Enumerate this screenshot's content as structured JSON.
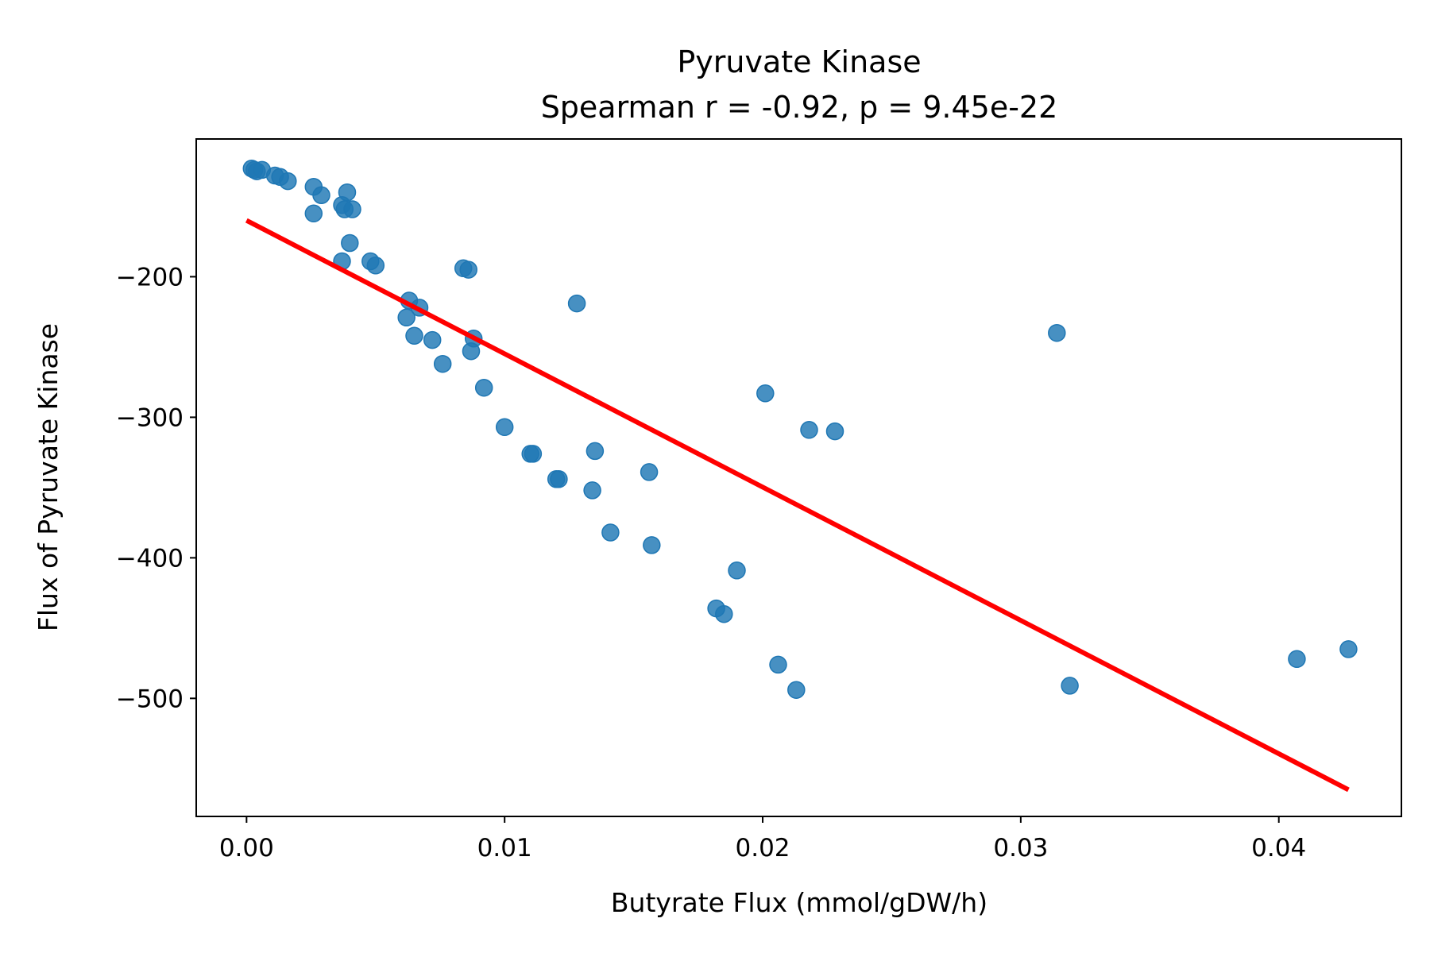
{
  "chart_data": {
    "type": "scatter",
    "title": "Pyruvate Kinase",
    "subtitle": "Spearman r = -0.92, p = 9.45e-22",
    "xlabel": "Butyrate Flux (mmol/gDW/h)",
    "ylabel": "Flux of Pyruvate Kinase",
    "xlim": [
      -0.00195,
      0.04475
    ],
    "ylim": [
      -584,
      -102
    ],
    "x_ticks": [
      0.0,
      0.01,
      0.02,
      0.03,
      0.04
    ],
    "x_tick_labels": [
      "0.00",
      "0.01",
      "0.02",
      "0.03",
      "0.04"
    ],
    "y_ticks": [
      -200,
      -300,
      -400,
      -500
    ],
    "y_tick_labels": [
      "−200",
      "−300",
      "−400",
      "−500"
    ],
    "grid": false,
    "colors": {
      "points": "#1f77b4",
      "fit_line": "#ff0000"
    },
    "fit_line": {
      "x": [
        0.0,
        0.0427
      ],
      "y": [
        -160,
        -565
      ]
    },
    "points": [
      {
        "x": 0.0002,
        "y": -123
      },
      {
        "x": 0.0003,
        "y": -124
      },
      {
        "x": 0.0004,
        "y": -125
      },
      {
        "x": 0.0006,
        "y": -124
      },
      {
        "x": 0.0011,
        "y": -128
      },
      {
        "x": 0.0013,
        "y": -129
      },
      {
        "x": 0.0016,
        "y": -132
      },
      {
        "x": 0.0026,
        "y": -136
      },
      {
        "x": 0.0029,
        "y": -142
      },
      {
        "x": 0.0039,
        "y": -140
      },
      {
        "x": 0.0037,
        "y": -149
      },
      {
        "x": 0.0038,
        "y": -152
      },
      {
        "x": 0.0041,
        "y": -152
      },
      {
        "x": 0.0026,
        "y": -155
      },
      {
        "x": 0.004,
        "y": -176
      },
      {
        "x": 0.0037,
        "y": -189
      },
      {
        "x": 0.0048,
        "y": -189
      },
      {
        "x": 0.005,
        "y": -192
      },
      {
        "x": 0.0084,
        "y": -194
      },
      {
        "x": 0.0086,
        "y": -195
      },
      {
        "x": 0.0063,
        "y": -217
      },
      {
        "x": 0.0067,
        "y": -222
      },
      {
        "x": 0.0062,
        "y": -229
      },
      {
        "x": 0.0128,
        "y": -219
      },
      {
        "x": 0.0065,
        "y": -242
      },
      {
        "x": 0.0072,
        "y": -245
      },
      {
        "x": 0.0088,
        "y": -244
      },
      {
        "x": 0.0087,
        "y": -253
      },
      {
        "x": 0.0076,
        "y": -262
      },
      {
        "x": 0.0092,
        "y": -279
      },
      {
        "x": 0.01,
        "y": -307
      },
      {
        "x": 0.011,
        "y": -326
      },
      {
        "x": 0.0111,
        "y": -326
      },
      {
        "x": 0.0135,
        "y": -324
      },
      {
        "x": 0.012,
        "y": -344
      },
      {
        "x": 0.0121,
        "y": -344
      },
      {
        "x": 0.0134,
        "y": -352
      },
      {
        "x": 0.0156,
        "y": -339
      },
      {
        "x": 0.0141,
        "y": -382
      },
      {
        "x": 0.0157,
        "y": -391
      },
      {
        "x": 0.019,
        "y": -409
      },
      {
        "x": 0.0182,
        "y": -436
      },
      {
        "x": 0.0185,
        "y": -440
      },
      {
        "x": 0.0201,
        "y": -283
      },
      {
        "x": 0.0218,
        "y": -309
      },
      {
        "x": 0.0228,
        "y": -310
      },
      {
        "x": 0.0206,
        "y": -476
      },
      {
        "x": 0.0213,
        "y": -494
      },
      {
        "x": 0.0314,
        "y": -240
      },
      {
        "x": 0.0319,
        "y": -491
      },
      {
        "x": 0.0407,
        "y": -472
      },
      {
        "x": 0.0427,
        "y": -465
      }
    ]
  }
}
